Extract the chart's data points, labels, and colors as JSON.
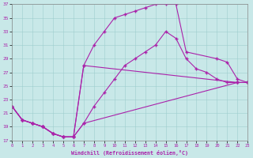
{
  "xlabel": "Windchill (Refroidissement éolien,°C)",
  "xlim": [
    0,
    23
  ],
  "ylim": [
    17,
    37
  ],
  "xticks": [
    0,
    1,
    2,
    3,
    4,
    5,
    6,
    7,
    8,
    9,
    10,
    11,
    12,
    13,
    14,
    15,
    16,
    17,
    18,
    19,
    20,
    21,
    22,
    23
  ],
  "yticks": [
    17,
    19,
    21,
    23,
    25,
    27,
    29,
    31,
    33,
    35,
    37
  ],
  "bg_color": "#c8e8e8",
  "line_color": "#aa22aa",
  "line1_x": [
    0,
    1,
    2,
    3,
    4,
    5,
    6,
    7,
    8,
    9,
    10,
    11,
    12,
    13,
    14,
    15,
    16,
    17,
    20,
    21,
    22,
    23
  ],
  "line1_y": [
    22,
    20,
    19.5,
    19,
    18,
    17.5,
    17.5,
    28,
    31,
    33,
    35,
    35.5,
    36,
    36.5,
    37,
    37,
    37,
    30,
    29,
    28.5,
    26,
    25.5
  ],
  "line2_x": [
    0,
    1,
    2,
    3,
    4,
    5,
    6,
    7,
    8,
    9,
    10,
    11,
    12,
    13,
    14,
    15,
    16,
    17,
    18,
    19,
    20,
    21,
    22,
    23
  ],
  "line2_y": [
    22,
    20,
    19.5,
    19,
    18,
    17.5,
    17.5,
    19.5,
    22,
    24,
    26,
    28,
    29,
    30,
    31,
    33,
    32,
    29,
    27.5,
    27,
    26,
    25.5,
    25.5,
    25.5
  ],
  "line3_x": [
    0,
    1,
    2,
    3,
    4,
    5,
    6,
    7,
    22,
    23
  ],
  "line3_y": [
    22,
    20,
    19.5,
    19,
    18,
    17.5,
    17.5,
    19.5,
    25.5,
    25.5
  ],
  "line4_x": [
    0,
    1,
    2,
    3,
    4,
    5,
    6,
    7,
    22,
    23
  ],
  "line4_y": [
    22,
    20,
    19.5,
    19,
    18,
    17.5,
    17.5,
    28,
    25.5,
    25.5
  ]
}
